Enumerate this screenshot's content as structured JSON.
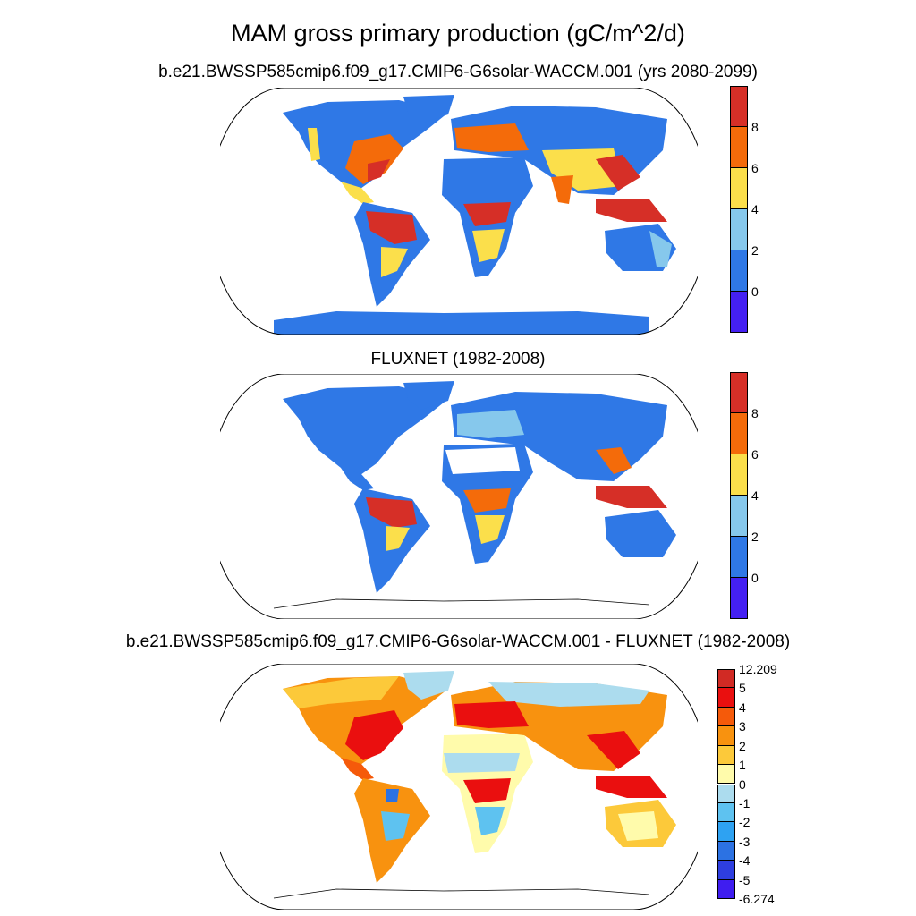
{
  "title": "MAM gross primary production (gC/m^2/d)",
  "panels": [
    {
      "id": "model",
      "subtitle": "b.e21.BWSSP585cmip6.f09_g17.CMIP6-G6solar-WACCM.001 (yrs 2080-2099)"
    },
    {
      "id": "obs",
      "subtitle": "FLUXNET (1982-2008)"
    },
    {
      "id": "diff",
      "subtitle": "b.e21.BWSSP585cmip6.f09_g17.CMIP6-G6solar-WACCM.001 - FLUXNET (1982-2008)"
    }
  ],
  "colorbar_abs": {
    "labels": [
      "8",
      "6",
      "4",
      "2",
      "0"
    ],
    "colors": [
      "#d62f27",
      "#f46b0a",
      "#fbdf4b",
      "#86c8ec",
      "#2f78e6",
      "#4420f2"
    ]
  },
  "colorbar_diff": {
    "labels": [
      "12.209",
      "5",
      "4",
      "3",
      "2",
      "1",
      "0",
      "-1",
      "-2",
      "-3",
      "-4",
      "-5",
      "-6.274"
    ],
    "colors": [
      "#d12a24",
      "#ea0f0f",
      "#f55a0a",
      "#f8920f",
      "#fcc93a",
      "#fffbab",
      "#acdcee",
      "#5ec2f0",
      "#2ea2f2",
      "#2c72e3",
      "#2e3ee0",
      "#3f1df0"
    ]
  },
  "map_colors": {
    "land_low": "#2f78e6",
    "land_mid": "#86c8ec",
    "land_yellow": "#fbdf4b",
    "land_orange": "#f46b0a",
    "land_red": "#d62f27",
    "missing": "#ffffff",
    "outline": "#000000"
  }
}
